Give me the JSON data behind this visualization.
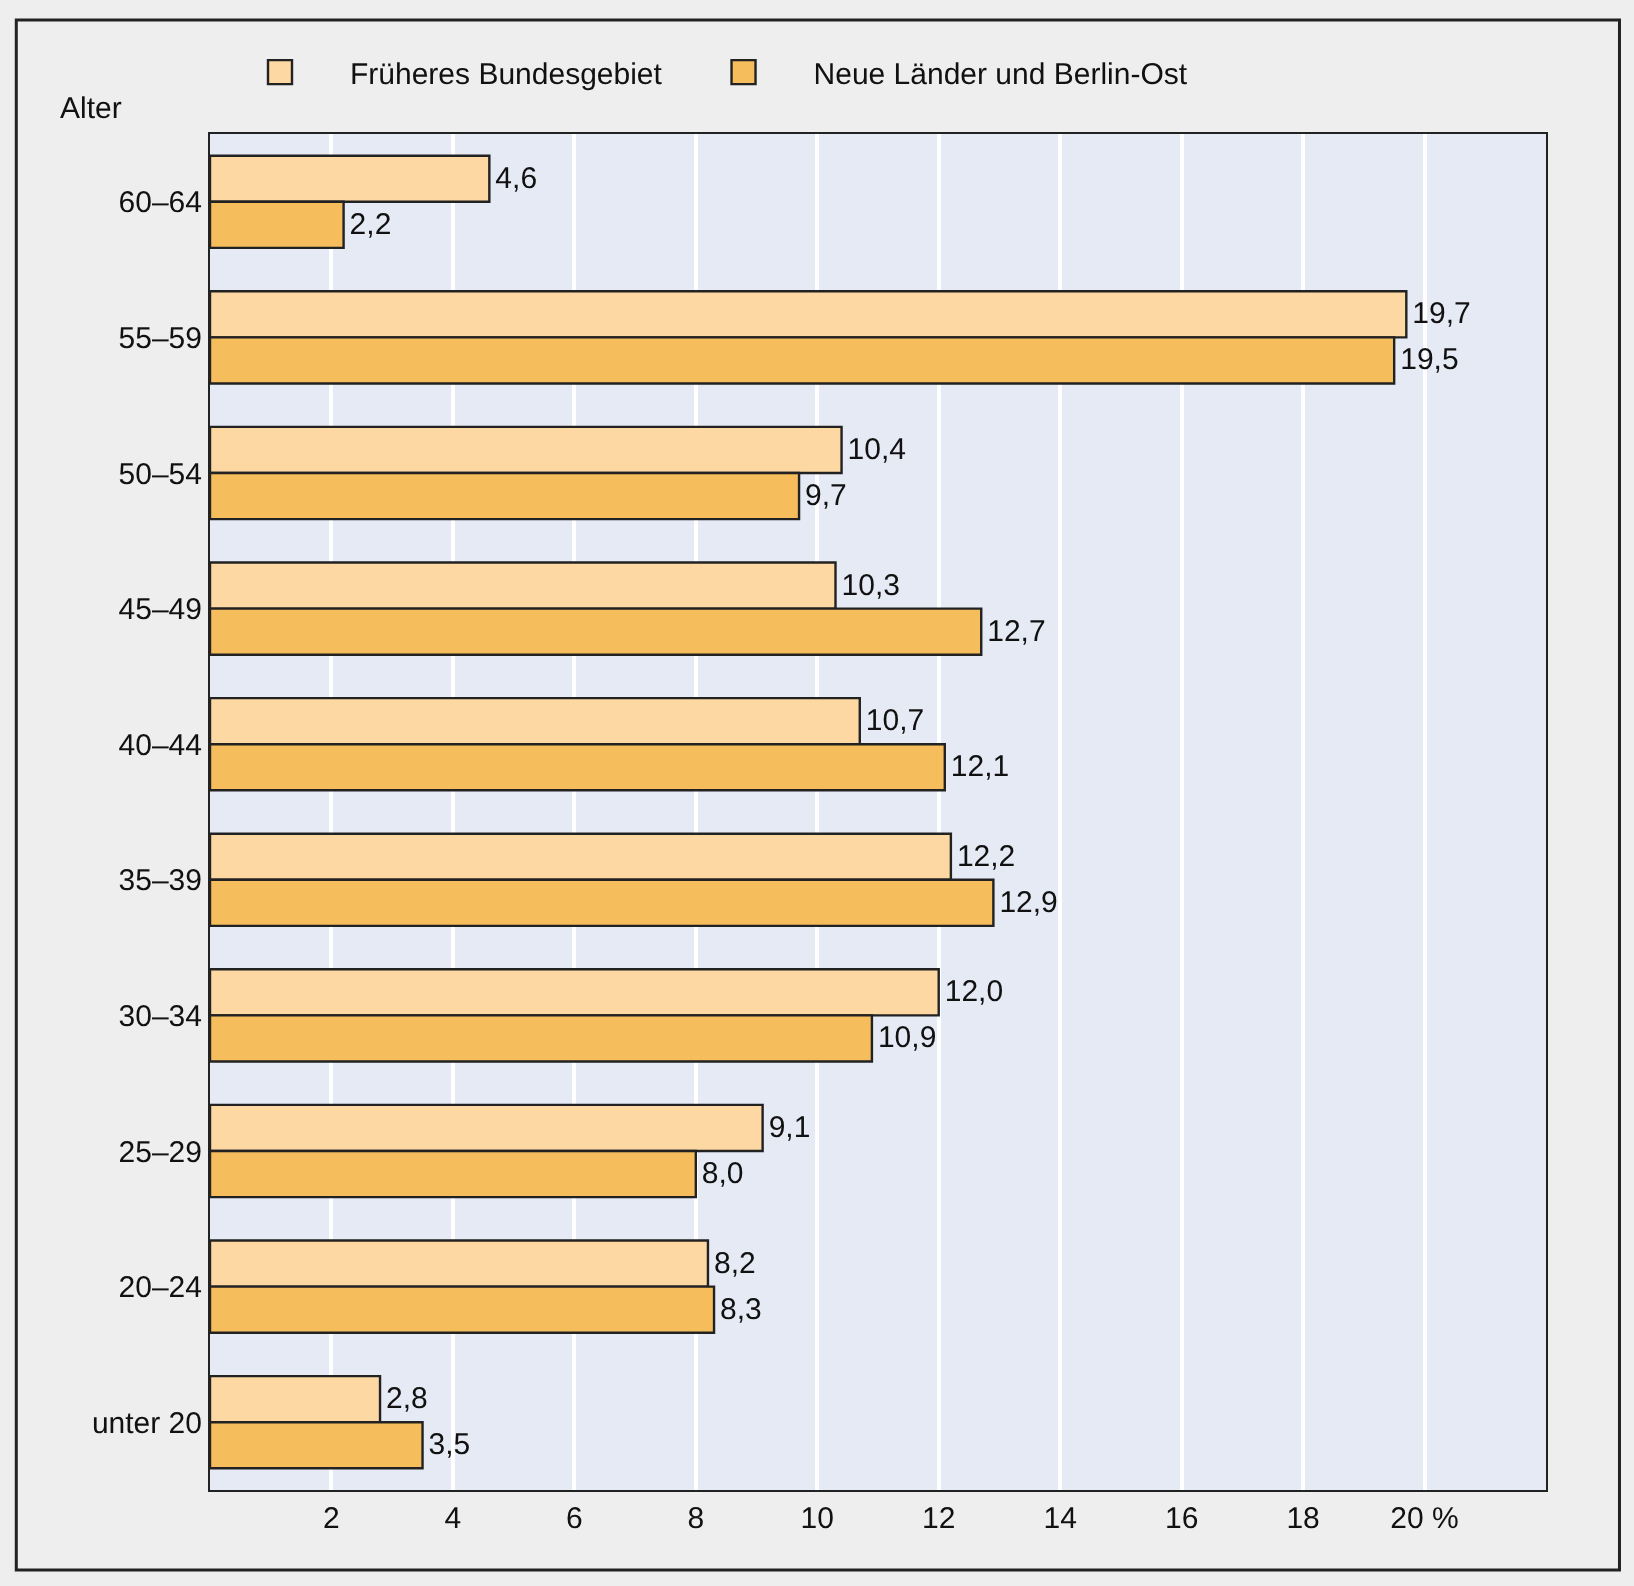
{
  "chart_data": {
    "type": "bar",
    "orientation": "horizontal",
    "ylabel": "Alter",
    "categories": [
      "60–64",
      "55–59",
      "50–54",
      "45–49",
      "40–44",
      "35–39",
      "30–34",
      "25–29",
      "20–24",
      "unter 20"
    ],
    "series": [
      {
        "name": "Früheres Bundesgebiet",
        "color": "#fdd8a3",
        "values": [
          4.6,
          19.7,
          10.4,
          10.3,
          10.7,
          12.2,
          12.0,
          9.1,
          8.2,
          2.8
        ],
        "value_labels": [
          "4,6",
          "19,7",
          "10,4",
          "10,3",
          "10,7",
          "12,2",
          "12,0",
          "9,1",
          "8,2",
          "2,8"
        ]
      },
      {
        "name": "Neue Länder und Berlin-Ost",
        "color": "#f5bd5c",
        "values": [
          2.2,
          19.5,
          9.7,
          12.7,
          12.1,
          12.9,
          10.9,
          8.0,
          8.3,
          3.5
        ],
        "value_labels": [
          "2,2",
          "19,5",
          "9,7",
          "12,7",
          "12,1",
          "12,9",
          "10,9",
          "8,0",
          "8,3",
          "3,5"
        ]
      }
    ],
    "xlim": [
      0,
      22
    ],
    "xticks": [
      2,
      4,
      6,
      8,
      10,
      12,
      14,
      16,
      18,
      {
        "value": 20,
        "label": "20 %"
      }
    ],
    "grid": "x",
    "legend": "top"
  }
}
